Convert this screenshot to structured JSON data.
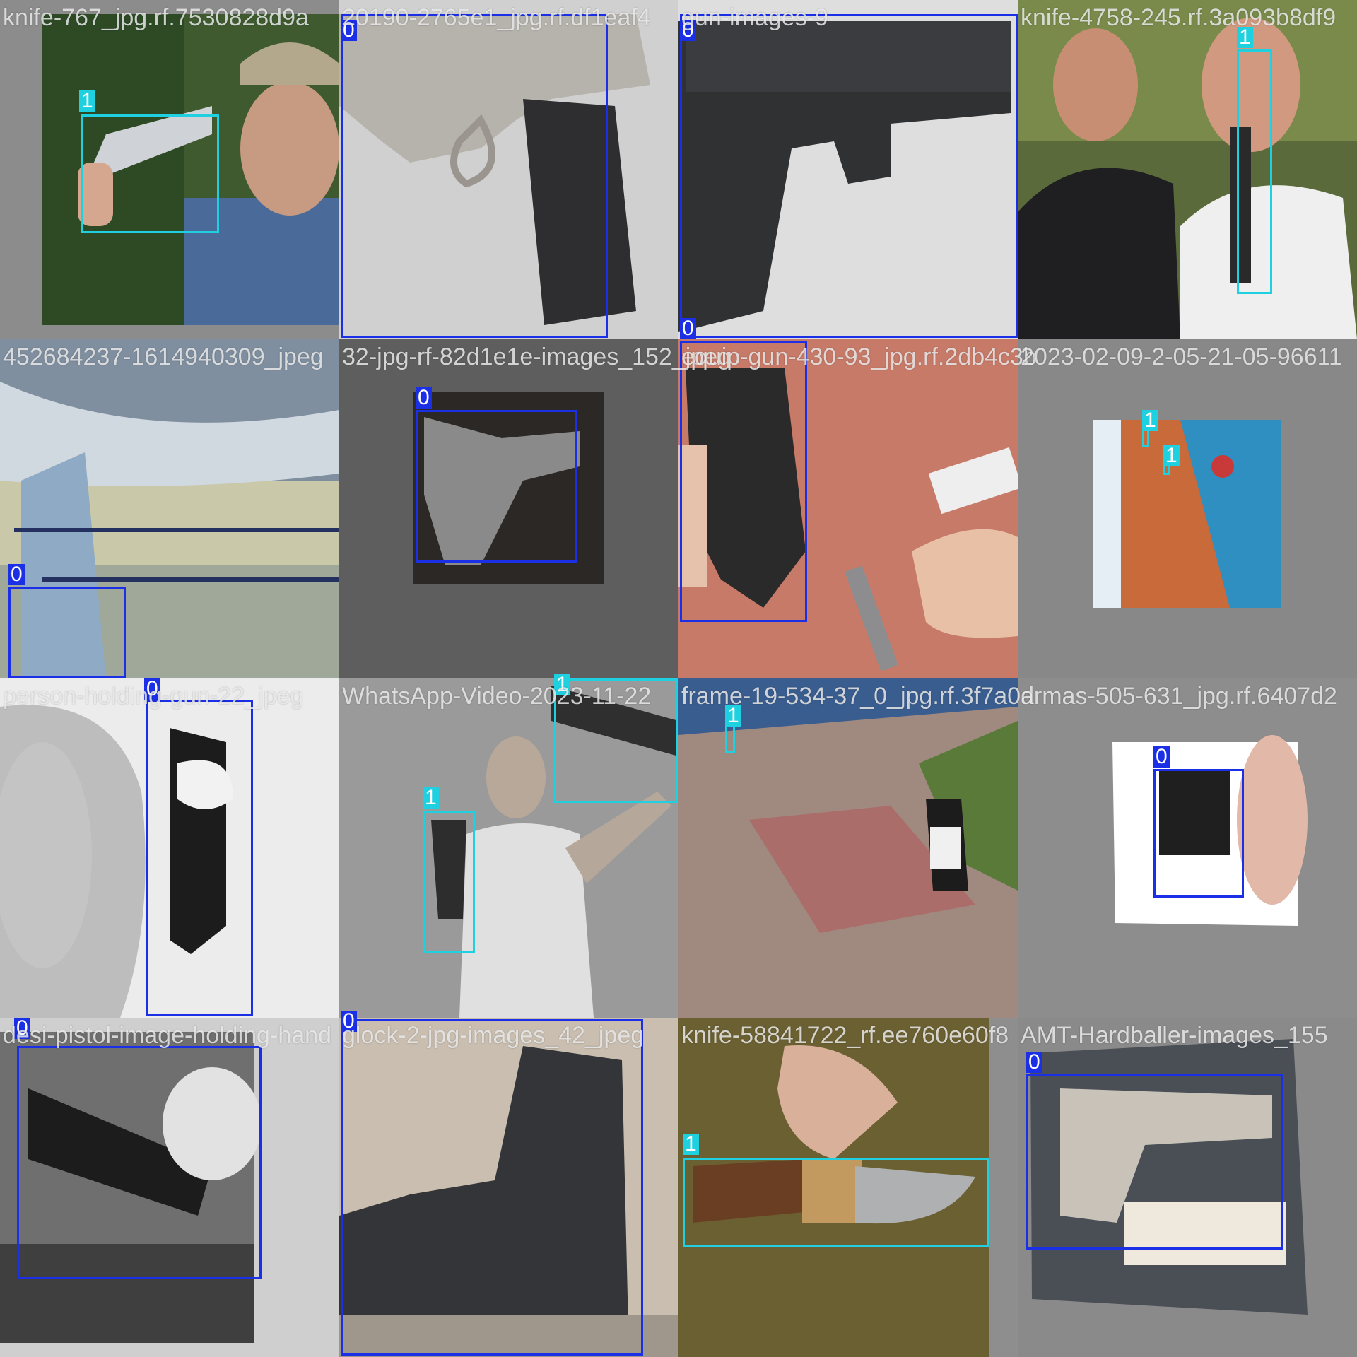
{
  "colors": {
    "class0": "#1a2fe6",
    "class1": "#1fd0e0"
  },
  "tiles": [
    {
      "name": "knife-767_jpg.rf.7530828d9a",
      "scene": "man-knife",
      "boxes": [
        {
          "label": "1"
        }
      ]
    },
    {
      "name": "20190-2765e1_jpg.rf.df1eaf4",
      "scene": "silver-pistol",
      "boxes": [
        {
          "label": "0"
        }
      ]
    },
    {
      "name": "gun-images-9",
      "scene": "black-pistol",
      "boxes": [
        {
          "label": "0"
        },
        {
          "label": "0"
        }
      ]
    },
    {
      "name": "knife-4758-245.rf.3a093b8df9",
      "scene": "two-men",
      "boxes": [
        {
          "label": "1"
        }
      ]
    },
    {
      "name": "452684237-1614940309_jpeg",
      "scene": "balcony",
      "boxes": [
        {
          "label": "0"
        }
      ]
    },
    {
      "name": "32-jpg-rf-82d1e1e-images_152_jpeg",
      "scene": "pistol-on-cloth",
      "boxes": [
        {
          "label": "0"
        }
      ]
    },
    {
      "name": "equip-gun-430-93_jpg.rf.2db4c3b",
      "scene": "hands-grip",
      "boxes": [
        {
          "label": "0"
        }
      ]
    },
    {
      "name": "2023-02-09-2-05-21-05-96611",
      "scene": "corridor",
      "boxes": [
        {
          "label": "1"
        },
        {
          "label": "1"
        }
      ]
    },
    {
      "name": "person-holding-gun-22_jpeg",
      "scene": "person-holding-gun",
      "boxes": [
        {
          "label": "0"
        }
      ]
    },
    {
      "name": "WhatsApp-Video-2023-11-22",
      "scene": "man-knife-raised",
      "boxes": [
        {
          "label": "1"
        },
        {
          "label": "1"
        }
      ]
    },
    {
      "name": "frame-19-534-37_0_jpg.rf.3f7a0d",
      "scene": "cctv-courtyard",
      "boxes": [
        {
          "label": "1"
        }
      ]
    },
    {
      "name": "armas-505-631_jpg.rf.6407d2",
      "scene": "pistol-closeup",
      "boxes": [
        {
          "label": "0"
        }
      ]
    },
    {
      "name": "desi-pistol-image-holding-hand",
      "scene": "bw-pistol",
      "boxes": [
        {
          "label": "0"
        }
      ]
    },
    {
      "name": "glock-2-jpg-images_42_jpeg",
      "scene": "glock-grip",
      "boxes": [
        {
          "label": "0"
        }
      ]
    },
    {
      "name": "knife-58841722_rf.ee760e60f8",
      "scene": "hunting-knife",
      "boxes": [
        {
          "label": "1"
        }
      ]
    },
    {
      "name": "AMT-Hardballer-images_155",
      "scene": "silver-1911",
      "boxes": [
        {
          "label": "0"
        }
      ]
    }
  ]
}
